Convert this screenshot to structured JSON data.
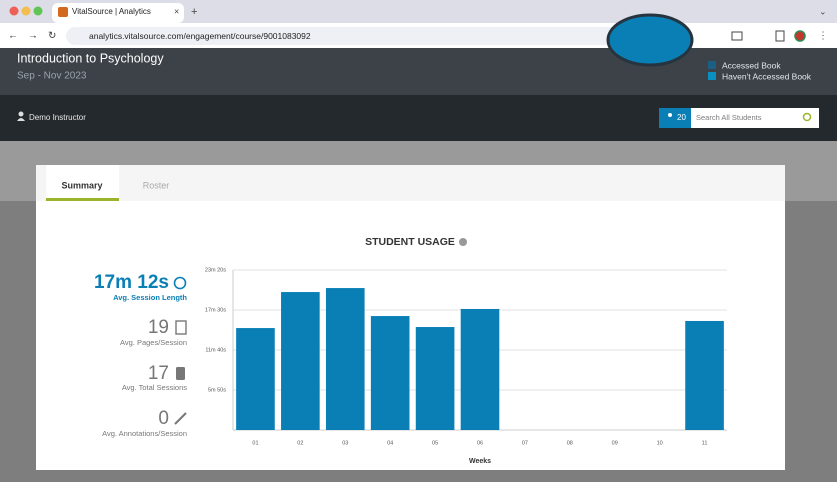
{
  "browser": {
    "tab_title": "VitalSource | Analytics",
    "url": "analytics.vitalsource.com/engagement/course/9001083092"
  },
  "header": {
    "course_title": "Introduction to Psychology",
    "term": "Sep - Nov 2023",
    "legend": [
      "Accessed Book",
      "Haven't Accessed Book"
    ],
    "instructor": "Demo Instructor",
    "student_count": 20,
    "search_placeholder": "Search All Students"
  },
  "tabs": [
    "Summary",
    "Roster"
  ],
  "stats": [
    {
      "value": "17m 12s",
      "label": "Avg. Session Length"
    },
    {
      "value": 19,
      "label": "Avg. Pages/Session"
    },
    {
      "value": 17,
      "label": "Avg. Total Sessions"
    },
    {
      "value": 0,
      "label": "Avg. Annotations/Session"
    }
  ],
  "chart_data": {
    "type": "bar",
    "title": "STUDENT USAGE",
    "x_label": "Weeks",
    "categories": [
      "01",
      "02",
      "03",
      "04",
      "05",
      "06",
      "07",
      "08",
      "09",
      "10",
      "11"
    ],
    "values": [
      892,
      1207,
      1242,
      997,
      901,
      1059,
      0,
      0,
      0,
      0,
      954
    ],
    "color": "#0a7fb5",
    "ylim": [
      0,
      1400
    ],
    "yticks": [
      {
        "value": 350,
        "label": "5m 50s"
      },
      {
        "value": 700,
        "label": "11m 40s"
      },
      {
        "value": 1050,
        "label": "17m 30s"
      },
      {
        "value": 1400,
        "label": "23m 20s"
      }
    ],
    "grid": true
  }
}
